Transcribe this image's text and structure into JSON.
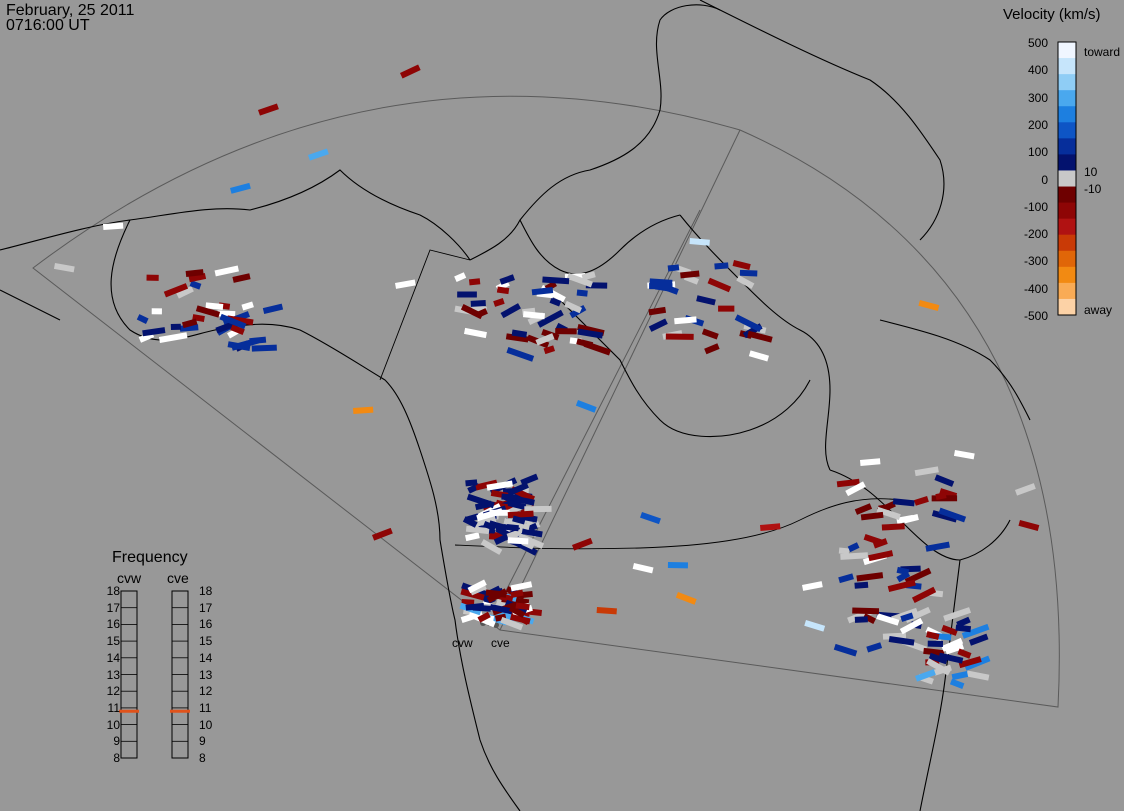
{
  "header": {
    "date": "February, 25 2011",
    "time": "0716:00 UT"
  },
  "colorbar": {
    "title": "Velocity (km/s)",
    "ticks": [
      "500",
      "400",
      "300",
      "200",
      "100",
      "0",
      "-100",
      "-200",
      "-300",
      "-400",
      "-500"
    ],
    "inner_pos": "10",
    "inner_neg": "-10",
    "toward_label": "toward",
    "away_label": "away",
    "colors": [
      "#f0f6ff",
      "#c6e5fb",
      "#8fcdf5",
      "#4aa8ee",
      "#1d7fe0",
      "#0e55c5",
      "#062e9b",
      "#03126e",
      "#c8c8c8",
      "#6e0000",
      "#8e0505",
      "#b01212",
      "#c93a06",
      "#e06608",
      "#f28a12",
      "#f9ab55",
      "#fcd2a6"
    ]
  },
  "frequency": {
    "title": "Frequency",
    "radars": [
      {
        "code": "cvw",
        "value_mhz": 10.8
      },
      {
        "code": "cve",
        "value_mhz": 10.8
      }
    ],
    "scale": [
      "18",
      "17",
      "16",
      "15",
      "14",
      "13",
      "12",
      "11",
      "10",
      "9",
      "8"
    ],
    "marker_color": "#e0521a"
  },
  "radars": [
    {
      "label": "cvw"
    },
    {
      "label": "cve"
    }
  ],
  "palette": {
    "background": "#989898",
    "coast": "#000000",
    "fov": "#555555",
    "ground": "#c8c8c8",
    "white": "#ffffff"
  }
}
